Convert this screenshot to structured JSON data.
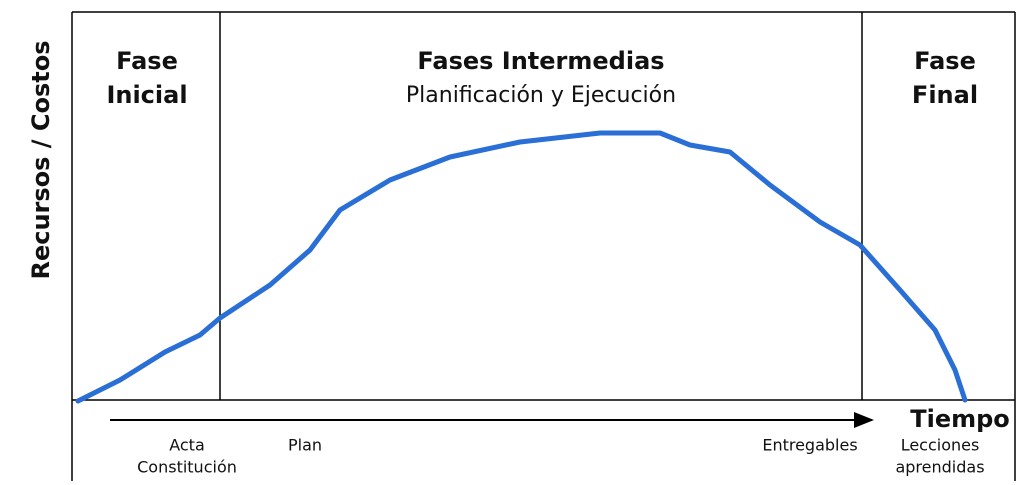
{
  "y_axis_label": "Recursos / Costos",
  "x_axis_label": "Tiempo",
  "phases": [
    {
      "title": [
        "Fase",
        "Inicial"
      ]
    },
    {
      "title": [
        "Fases Intermedias"
      ],
      "subtitle": "Planificación y Ejecución"
    },
    {
      "title": [
        "Fase",
        "Final"
      ]
    }
  ],
  "milestones": [
    {
      "label": [
        "Acta",
        "Constitución"
      ]
    },
    {
      "label": [
        "Plan"
      ]
    },
    {
      "label": [
        "Entregables"
      ]
    },
    {
      "label": [
        "Lecciones",
        "aprendidas"
      ]
    }
  ]
}
